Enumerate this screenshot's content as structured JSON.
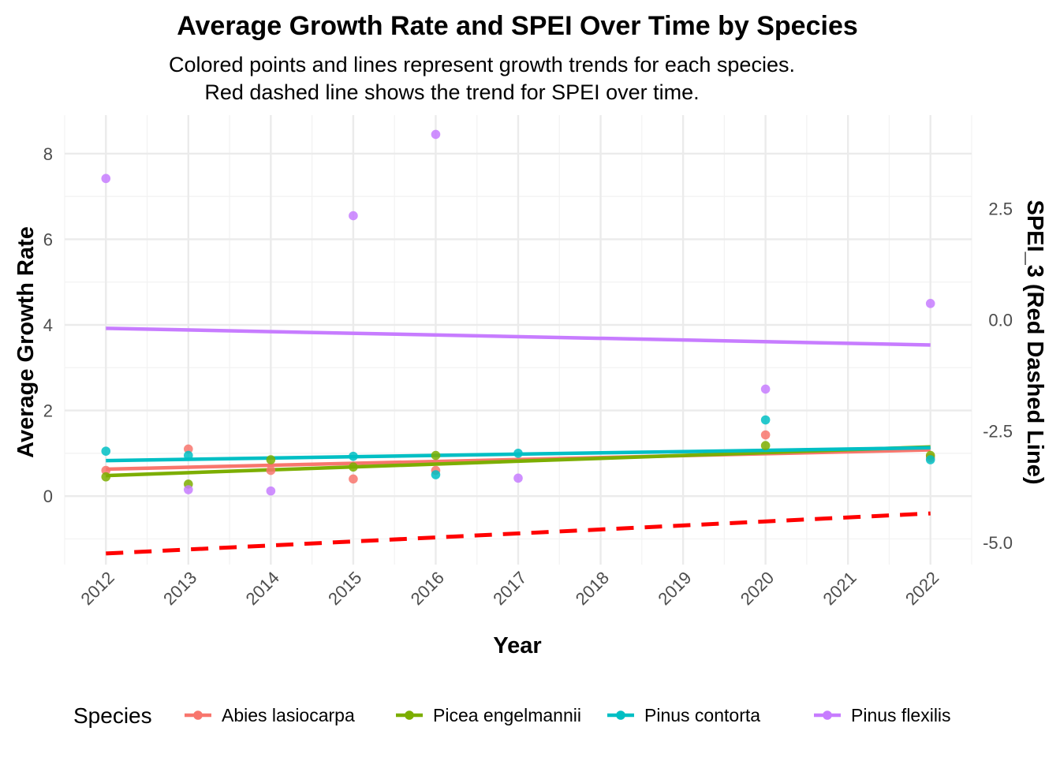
{
  "chart_data": {
    "type": "scatter",
    "title": "Average Growth Rate and SPEI Over Time by Species",
    "subtitle_lines": [
      "Colored points and lines represent growth trends for each species.",
      "Red dashed line shows the trend for SPEI over time."
    ],
    "xlabel": "Year",
    "ylabel": "Average Growth Rate",
    "y2label": "SPEI_3 (Red Dashed Line)",
    "xlim": [
      2011.5,
      2022.5
    ],
    "ylim": [
      -1.6,
      8.9
    ],
    "y2lim": [
      -5.5,
      4.6
    ],
    "x_ticks": [
      "2012",
      "2013",
      "2014",
      "2015",
      "2016",
      "2017",
      "2018",
      "2019",
      "2020",
      "2021",
      "2022"
    ],
    "y_ticks": [
      "0",
      "2",
      "4",
      "6",
      "8"
    ],
    "y2_ticks": [
      "-5.0",
      "-2.5",
      "0.0",
      "2.5"
    ],
    "grid": true,
    "legend": {
      "title": "Species",
      "position": "bottom"
    },
    "series": [
      {
        "name": "Abies lasiocarpa",
        "color": "#F8766D",
        "points": [
          [
            2012,
            0.6
          ],
          [
            2013,
            1.1
          ],
          [
            2014,
            0.6
          ],
          [
            2015,
            0.4
          ],
          [
            2016,
            0.6
          ],
          [
            2020,
            1.43
          ],
          [
            2022,
            0.9
          ]
        ],
        "trend": [
          [
            2012,
            0.63
          ],
          [
            2022,
            1.08
          ]
        ]
      },
      {
        "name": "Picea engelmannii",
        "color": "#7CAE00",
        "points": [
          [
            2012,
            0.45
          ],
          [
            2013,
            0.28
          ],
          [
            2014,
            0.85
          ],
          [
            2015,
            0.68
          ],
          [
            2016,
            0.95
          ],
          [
            2020,
            1.18
          ],
          [
            2022,
            0.95
          ]
        ],
        "trend": [
          [
            2012,
            0.48
          ],
          [
            2022,
            1.15
          ]
        ]
      },
      {
        "name": "Pinus contorta",
        "color": "#00BFC4",
        "points": [
          [
            2012,
            1.05
          ],
          [
            2013,
            0.95
          ],
          [
            2015,
            0.93
          ],
          [
            2016,
            0.5
          ],
          [
            2017,
            1.0
          ],
          [
            2020,
            1.78
          ],
          [
            2022,
            0.85
          ]
        ],
        "trend": [
          [
            2012,
            0.83
          ],
          [
            2022,
            1.13
          ]
        ]
      },
      {
        "name": "Pinus flexilis",
        "color": "#C77CFF",
        "points": [
          [
            2012,
            7.42
          ],
          [
            2013,
            0.15
          ],
          [
            2014,
            0.12
          ],
          [
            2015,
            6.55
          ],
          [
            2016,
            8.45
          ],
          [
            2017,
            0.42
          ],
          [
            2020,
            2.5
          ],
          [
            2022,
            4.5
          ]
        ],
        "trend": [
          [
            2012,
            3.92
          ],
          [
            2022,
            3.53
          ]
        ]
      }
    ],
    "spei_trend": {
      "color": "#FF0000",
      "line": [
        [
          2012,
          -5.25
        ],
        [
          2022,
          -4.35
        ]
      ]
    }
  }
}
